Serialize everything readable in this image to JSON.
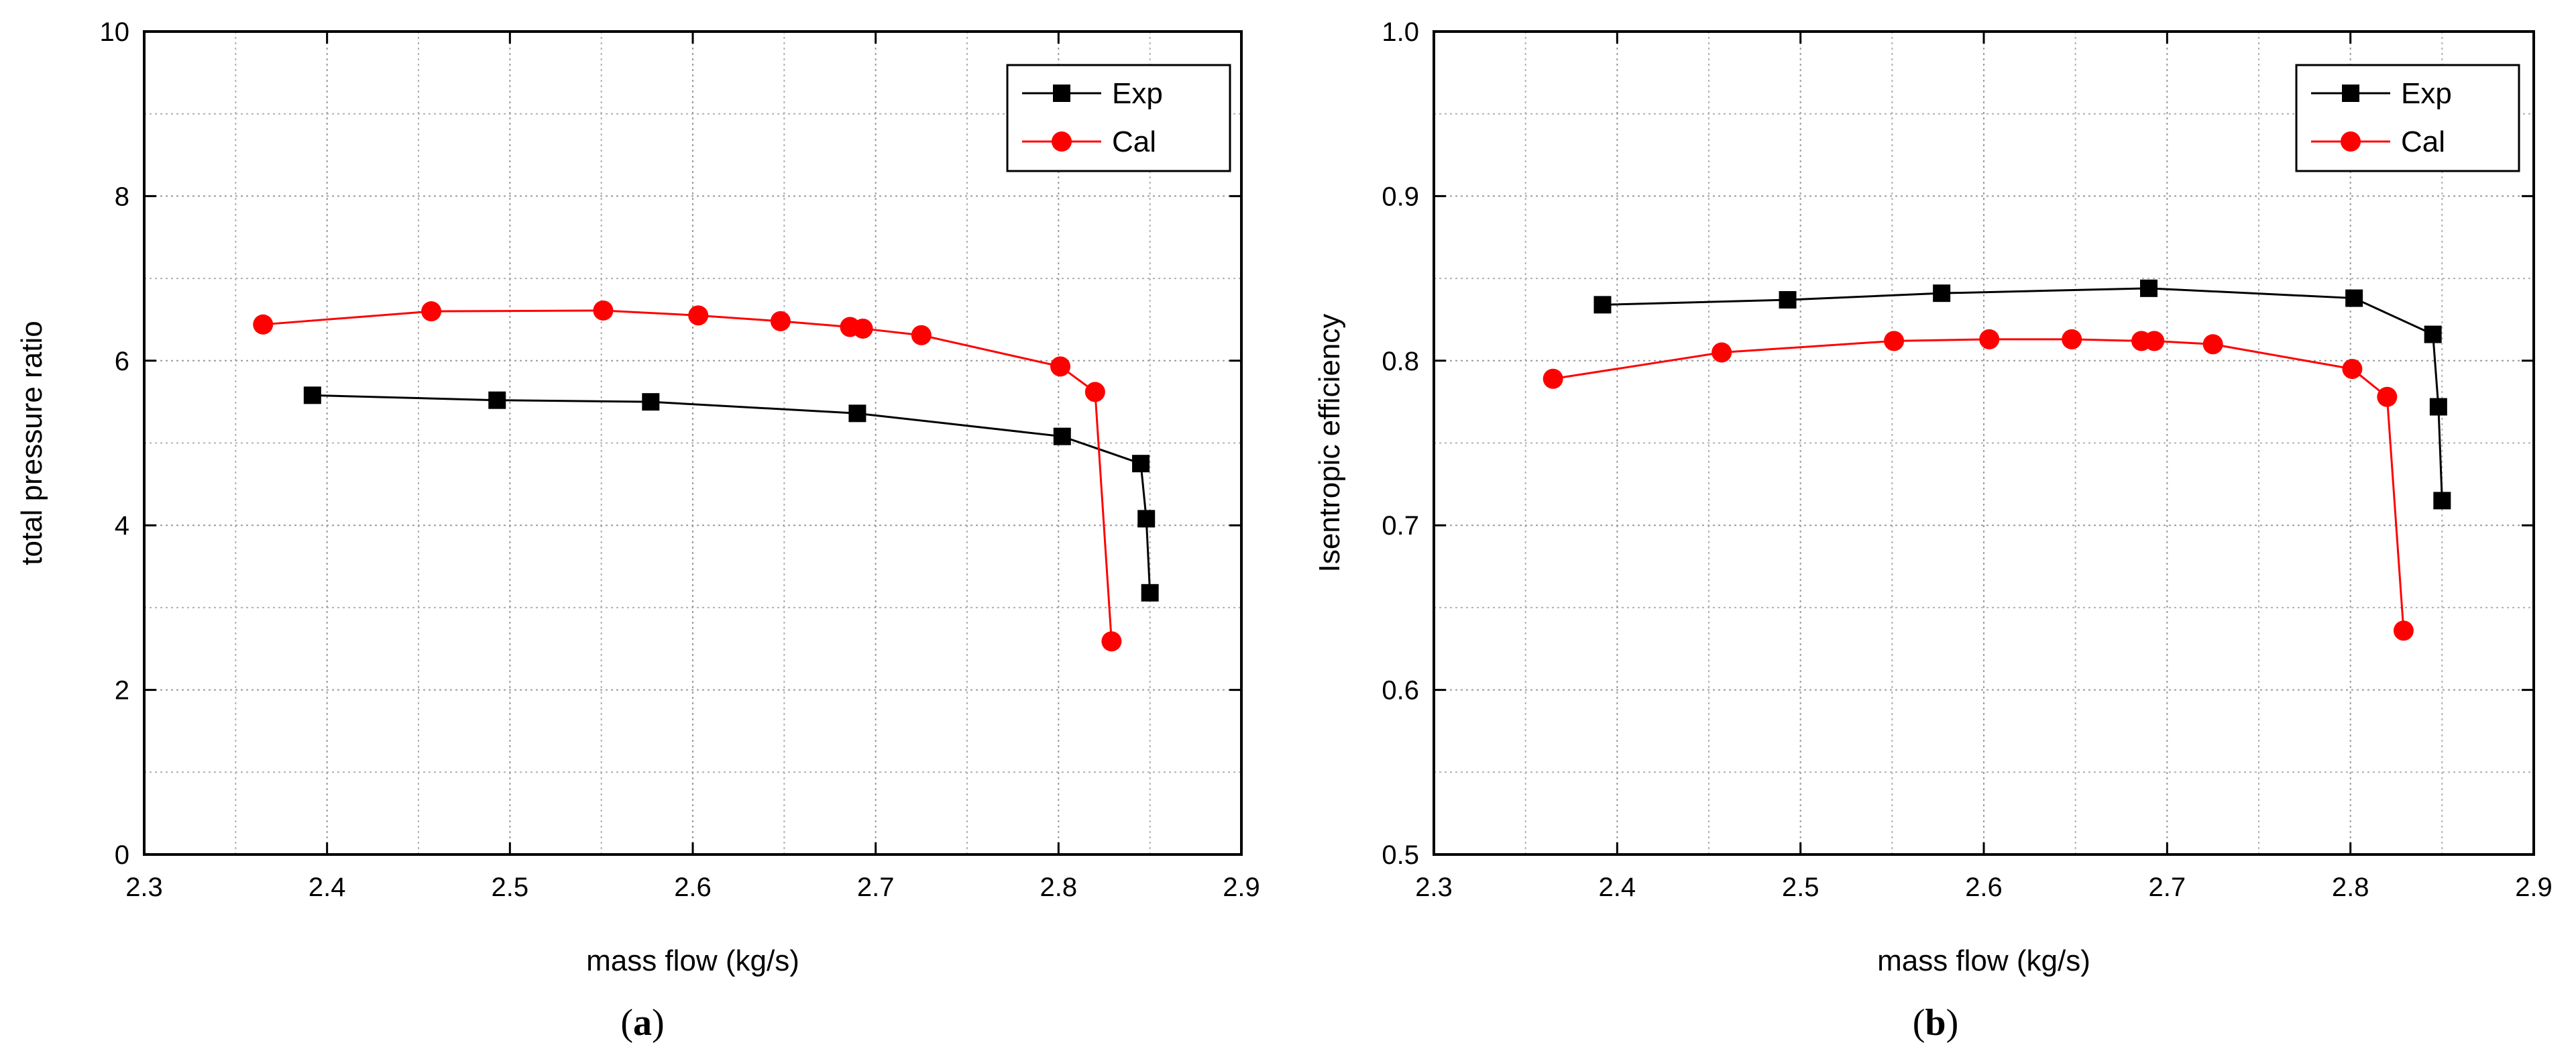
{
  "chart_data": [
    {
      "type": "line",
      "panel_label": "a",
      "xlabel": "mass flow (kg/s)",
      "ylabel": "total pressure ratio",
      "xlim": [
        2.3,
        2.9
      ],
      "ylim": [
        0,
        10
      ],
      "xticks": [
        2.3,
        2.4,
        2.5,
        2.6,
        2.7,
        2.8,
        2.9
      ],
      "yticks": [
        0,
        2,
        4,
        6,
        8,
        10
      ],
      "x_tick_labels": [
        "2.3",
        "2.4",
        "2.5",
        "2.6",
        "2.7",
        "2.8",
        "2.9"
      ],
      "y_tick_labels": [
        "0",
        "2",
        "4",
        "6",
        "8",
        "10"
      ],
      "grid": true,
      "legend_position": "top-right",
      "series": [
        {
          "name": "Exp",
          "color": "#000000",
          "marker": "square",
          "x": [
            2.392,
            2.493,
            2.577,
            2.69,
            2.802,
            2.845,
            2.848,
            2.85
          ],
          "y": [
            5.58,
            5.52,
            5.5,
            5.36,
            5.08,
            4.75,
            4.08,
            3.18
          ]
        },
        {
          "name": "Cal",
          "color": "#ff0000",
          "marker": "circle",
          "x": [
            2.365,
            2.457,
            2.551,
            2.603,
            2.648,
            2.686,
            2.693,
            2.725,
            2.801,
            2.82,
            2.829
          ],
          "y": [
            6.44,
            6.6,
            6.61,
            6.55,
            6.48,
            6.41,
            6.39,
            6.31,
            5.93,
            5.62,
            2.59
          ]
        }
      ]
    },
    {
      "type": "line",
      "panel_label": "b",
      "xlabel": "mass flow (kg/s)",
      "ylabel": "Isentropic efficiency",
      "xlim": [
        2.3,
        2.9
      ],
      "ylim": [
        0.5,
        1.0
      ],
      "xticks": [
        2.3,
        2.4,
        2.5,
        2.6,
        2.7,
        2.8,
        2.9
      ],
      "yticks": [
        0.5,
        0.6,
        0.7,
        0.8,
        0.9,
        1.0
      ],
      "x_tick_labels": [
        "2.3",
        "2.4",
        "2.5",
        "2.6",
        "2.7",
        "2.8",
        "2.9"
      ],
      "y_tick_labels": [
        "0.5",
        "0.6",
        "0.7",
        "0.8",
        "0.9",
        "1.0"
      ],
      "grid": true,
      "legend_position": "top-right",
      "series": [
        {
          "name": "Exp",
          "color": "#000000",
          "marker": "square",
          "x": [
            2.392,
            2.493,
            2.577,
            2.69,
            2.802,
            2.845,
            2.848,
            2.85
          ],
          "y": [
            0.834,
            0.837,
            0.841,
            0.844,
            0.838,
            0.816,
            0.772,
            0.715
          ]
        },
        {
          "name": "Cal",
          "color": "#ff0000",
          "marker": "circle",
          "x": [
            2.365,
            2.457,
            2.551,
            2.603,
            2.648,
            2.686,
            2.693,
            2.725,
            2.801,
            2.82,
            2.829
          ],
          "y": [
            0.789,
            0.805,
            0.812,
            0.813,
            0.813,
            0.812,
            0.812,
            0.81,
            0.795,
            0.778,
            0.636
          ]
        }
      ]
    }
  ]
}
